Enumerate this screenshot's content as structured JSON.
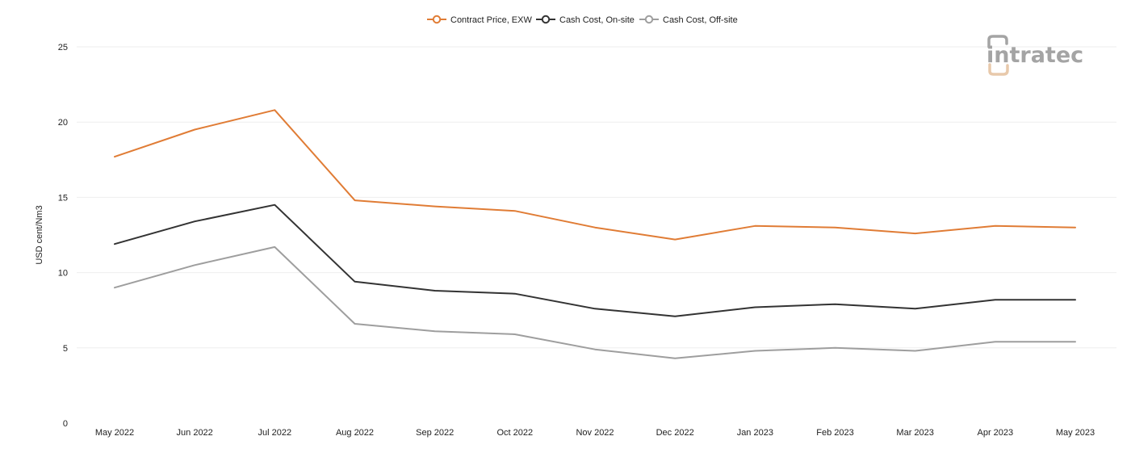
{
  "brand": {
    "logo_text": "intratec"
  },
  "chart_data": {
    "type": "line",
    "title": "",
    "xlabel": "",
    "ylabel": "USD cent/Nm3",
    "ylim": [
      0,
      25
    ],
    "yticks": [
      0,
      5,
      10,
      15,
      20,
      25
    ],
    "grid": true,
    "legend_position": "top-center",
    "categories": [
      "May 2022",
      "Jun 2022",
      "Jul 2022",
      "Aug 2022",
      "Sep 2022",
      "Oct 2022",
      "Nov 2022",
      "Dec 2022",
      "Jan 2023",
      "Feb 2023",
      "Mar 2023",
      "Apr 2023",
      "May 2023"
    ],
    "series": [
      {
        "name": "Contract Price, EXW",
        "color": "#e07c35",
        "values": [
          17.7,
          19.5,
          20.8,
          14.8,
          14.4,
          14.1,
          13.0,
          12.2,
          13.1,
          13.0,
          12.6,
          13.1,
          13.0
        ]
      },
      {
        "name": "Cash Cost, On-site",
        "color": "#333333",
        "values": [
          11.9,
          13.4,
          14.5,
          9.4,
          8.8,
          8.6,
          7.6,
          7.1,
          7.7,
          7.9,
          7.6,
          8.2,
          8.2
        ]
      },
      {
        "name": "Cash Cost, Off-site",
        "color": "#9e9e9e",
        "values": [
          9.0,
          10.5,
          11.7,
          6.6,
          6.1,
          5.9,
          4.9,
          4.3,
          4.8,
          5.0,
          4.8,
          5.4,
          5.4
        ]
      }
    ]
  }
}
